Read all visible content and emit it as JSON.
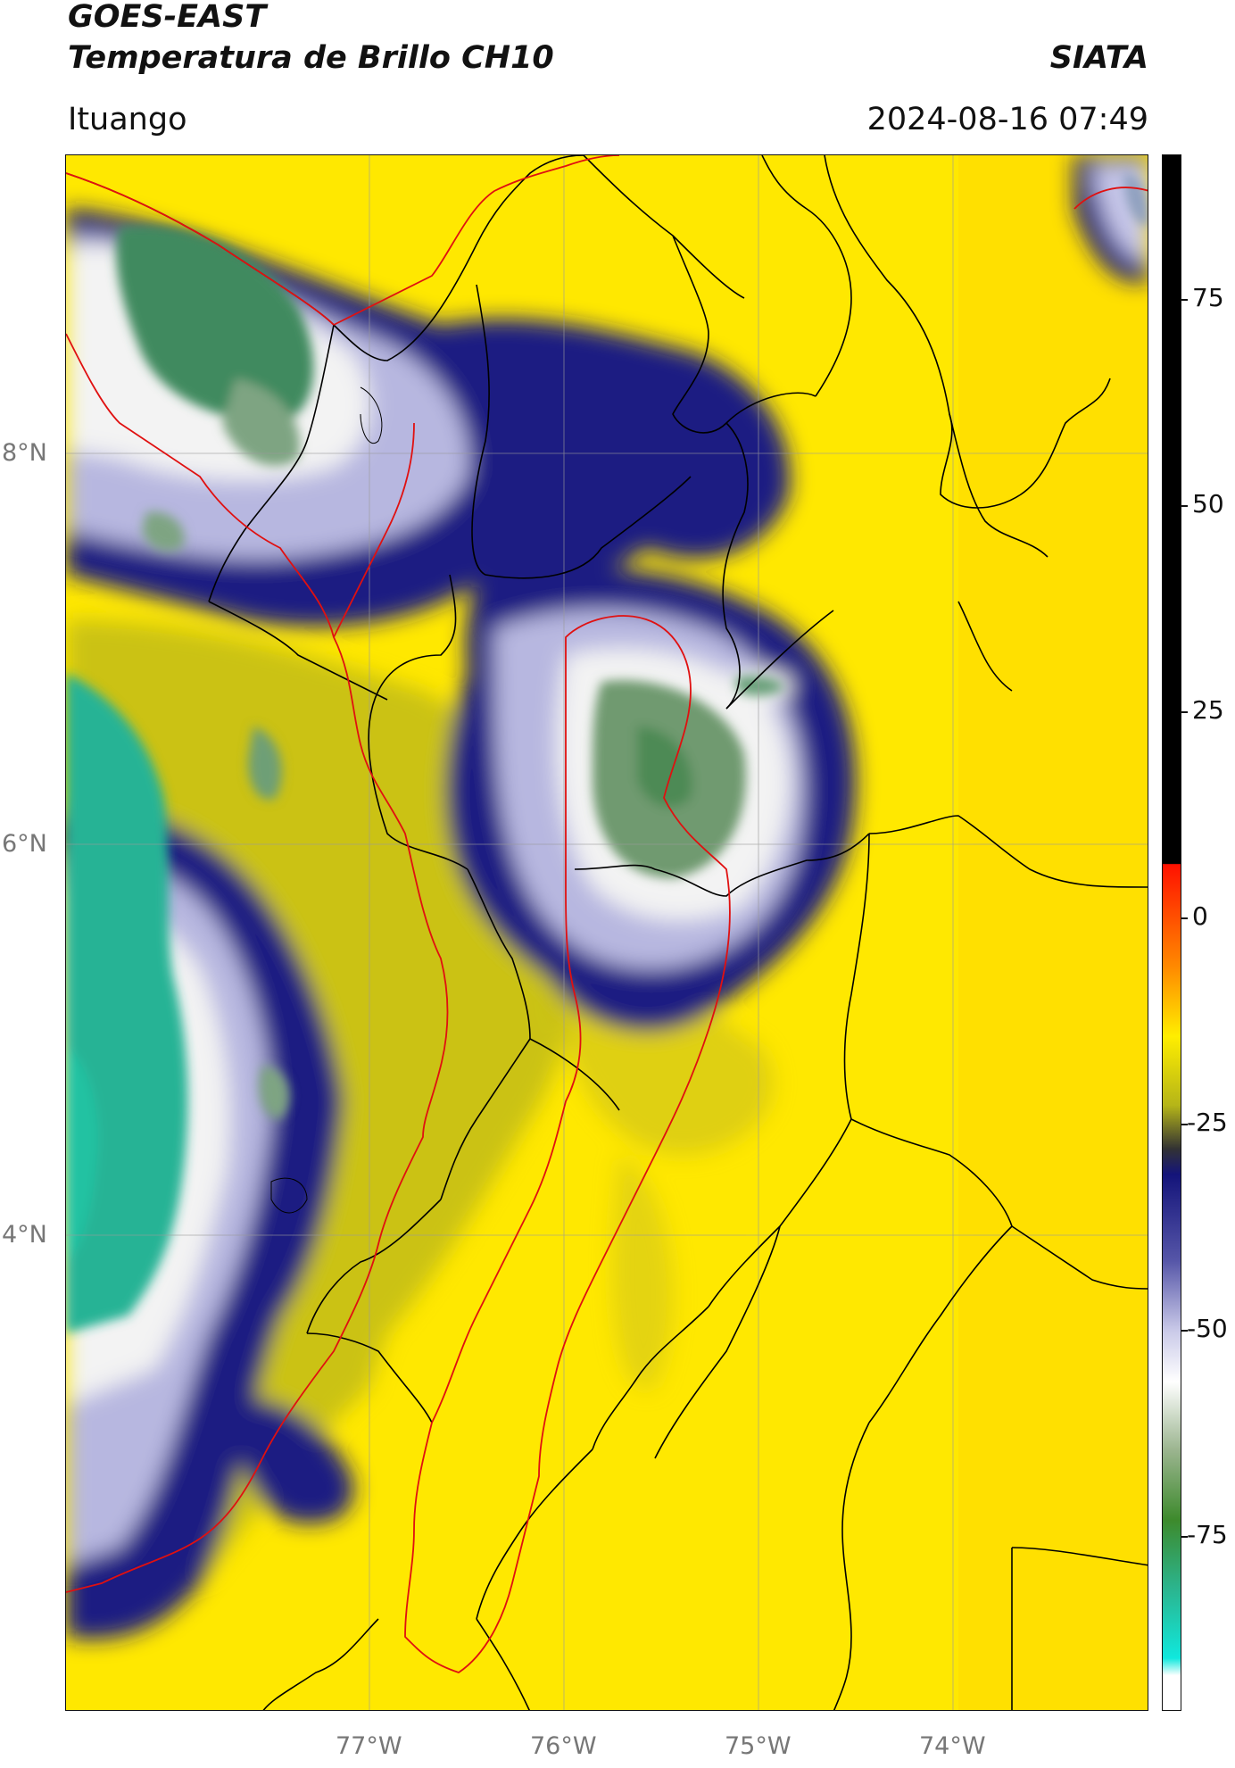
{
  "header": {
    "satellite": "GOES-EAST",
    "product": "Temperatura de Brillo CH10",
    "organization": "SIATA",
    "location": "Ituango",
    "datetime": "2024-08-16 07:49"
  },
  "map": {
    "lat_labels": [
      "8°N",
      "6°N",
      "4°N"
    ],
    "lon_labels": [
      "77°W",
      "76°W",
      "75°W",
      "74°W"
    ],
    "gridline_color": "#9a9a9a",
    "admin_border_color": "#000000",
    "ituango_border_color": "#e01010",
    "palette": {
      "warm": "#ffee00",
      "mid_olive": "#bfbf18",
      "cold_navy": "#1a1a80",
      "lavender": "#b9b9e2",
      "white": "#f5f5f5",
      "cold_green": "#4e8f5a",
      "coldest_teal": "#27bb99"
    }
  },
  "colorbar": {
    "labels": [
      "75",
      "50",
      "25",
      "0",
      "-25",
      "-50",
      "-75"
    ],
    "stops": [
      {
        "v": 90,
        "c": "#000000"
      },
      {
        "v": 8,
        "c": "#000000"
      },
      {
        "v": 7.9,
        "c": "#ff1100"
      },
      {
        "v": -4,
        "c": "#ff8a00"
      },
      {
        "v": -12,
        "c": "#ffee00"
      },
      {
        "v": -20,
        "c": "#b5b518"
      },
      {
        "v": -25,
        "c": "#333333"
      },
      {
        "v": -28,
        "c": "#14147a"
      },
      {
        "v": -38,
        "c": "#5656a8"
      },
      {
        "v": -46,
        "c": "#c9c9e8"
      },
      {
        "v": -52,
        "c": "#ffffff"
      },
      {
        "v": -60,
        "c": "#9ab48e"
      },
      {
        "v": -68,
        "c": "#3d8a2c"
      },
      {
        "v": -76,
        "c": "#2bb58f"
      },
      {
        "v": -84,
        "c": "#10e8dd"
      },
      {
        "v": -86,
        "c": "#ffffff"
      },
      {
        "v": -90,
        "c": "#ffffff"
      }
    ]
  }
}
